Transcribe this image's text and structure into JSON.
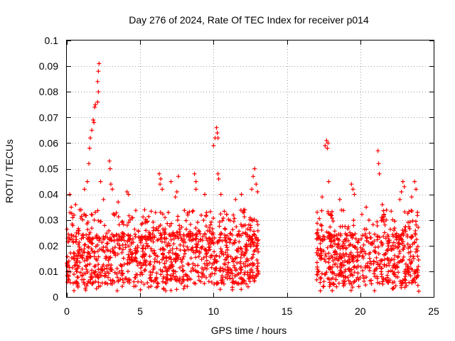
{
  "chart_data": {
    "type": "scatter",
    "title": "Day 276 of 2024, Rate Of TEC Index for receiver p014",
    "xlabel": "GPS time / hours",
    "ylabel": "ROTI / TECUs",
    "xlim": [
      0,
      25
    ],
    "ylim": [
      0,
      0.1
    ],
    "xticks": [
      0,
      5,
      10,
      15,
      20,
      25
    ],
    "yticks": [
      0,
      0.01,
      0.02,
      0.03,
      0.04,
      0.05,
      0.06,
      0.07,
      0.08,
      0.09,
      0.1
    ],
    "xtick_labels": [
      "0",
      "5",
      "10",
      "15",
      "20",
      "25"
    ],
    "ytick_labels": [
      "0",
      "0.01",
      "0.02",
      "0.03",
      "0.04",
      "0.05",
      "0.06",
      "0.07",
      "0.08",
      "0.09",
      "0.1"
    ],
    "grid": true,
    "marker": "+",
    "color": "#ff0000",
    "series": [
      {
        "name": "ROTI",
        "segments": [
          {
            "x_start": 0.0,
            "x_end": 13.05,
            "typical_min": 0.005,
            "typical_max": 0.025
          },
          {
            "x_start": 17.0,
            "x_end": 24.0,
            "typical_min": 0.005,
            "typical_max": 0.025
          }
        ],
        "points": [
          {
            "x": 0.2,
            "y": 0.04
          },
          {
            "x": 0.3,
            "y": 0.035
          },
          {
            "x": 0.6,
            "y": 0.036
          },
          {
            "x": 1.2,
            "y": 0.042
          },
          {
            "x": 1.4,
            "y": 0.045
          },
          {
            "x": 1.5,
            "y": 0.052
          },
          {
            "x": 1.55,
            "y": 0.058
          },
          {
            "x": 1.6,
            "y": 0.062
          },
          {
            "x": 1.7,
            "y": 0.065
          },
          {
            "x": 1.8,
            "y": 0.069
          },
          {
            "x": 1.85,
            "y": 0.068
          },
          {
            "x": 1.9,
            "y": 0.074
          },
          {
            "x": 1.95,
            "y": 0.075
          },
          {
            "x": 2.1,
            "y": 0.076
          },
          {
            "x": 2.15,
            "y": 0.08
          },
          {
            "x": 2.1,
            "y": 0.084
          },
          {
            "x": 2.15,
            "y": 0.088
          },
          {
            "x": 2.2,
            "y": 0.091
          },
          {
            "x": 2.3,
            "y": 0.045
          },
          {
            "x": 2.5,
            "y": 0.038
          },
          {
            "x": 2.9,
            "y": 0.053
          },
          {
            "x": 2.95,
            "y": 0.05
          },
          {
            "x": 3.0,
            "y": 0.044
          },
          {
            "x": 3.1,
            "y": 0.042
          },
          {
            "x": 3.5,
            "y": 0.037
          },
          {
            "x": 4.1,
            "y": 0.041
          },
          {
            "x": 4.2,
            "y": 0.04
          },
          {
            "x": 5.3,
            "y": 0.034
          },
          {
            "x": 6.3,
            "y": 0.048
          },
          {
            "x": 6.35,
            "y": 0.044
          },
          {
            "x": 6.4,
            "y": 0.046
          },
          {
            "x": 6.5,
            "y": 0.042
          },
          {
            "x": 7.1,
            "y": 0.045
          },
          {
            "x": 7.4,
            "y": 0.039
          },
          {
            "x": 7.5,
            "y": 0.041
          },
          {
            "x": 7.6,
            "y": 0.047
          },
          {
            "x": 8.7,
            "y": 0.048
          },
          {
            "x": 8.8,
            "y": 0.045
          },
          {
            "x": 8.8,
            "y": 0.042
          },
          {
            "x": 9.4,
            "y": 0.04
          },
          {
            "x": 10.0,
            "y": 0.059
          },
          {
            "x": 10.1,
            "y": 0.062
          },
          {
            "x": 10.2,
            "y": 0.066
          },
          {
            "x": 10.25,
            "y": 0.064
          },
          {
            "x": 10.3,
            "y": 0.062
          },
          {
            "x": 10.3,
            "y": 0.048
          },
          {
            "x": 10.35,
            "y": 0.046
          },
          {
            "x": 10.5,
            "y": 0.04
          },
          {
            "x": 11.5,
            "y": 0.038
          },
          {
            "x": 11.9,
            "y": 0.04
          },
          {
            "x": 12.6,
            "y": 0.042
          },
          {
            "x": 12.7,
            "y": 0.047
          },
          {
            "x": 12.8,
            "y": 0.05
          },
          {
            "x": 12.9,
            "y": 0.044
          },
          {
            "x": 13.0,
            "y": 0.041
          },
          {
            "x": 17.4,
            "y": 0.039
          },
          {
            "x": 17.6,
            "y": 0.059
          },
          {
            "x": 17.7,
            "y": 0.061
          },
          {
            "x": 17.75,
            "y": 0.058
          },
          {
            "x": 17.8,
            "y": 0.06
          },
          {
            "x": 17.85,
            "y": 0.045
          },
          {
            "x": 18.6,
            "y": 0.038
          },
          {
            "x": 19.4,
            "y": 0.044
          },
          {
            "x": 19.5,
            "y": 0.042
          },
          {
            "x": 19.6,
            "y": 0.04
          },
          {
            "x": 20.4,
            "y": 0.035
          },
          {
            "x": 21.2,
            "y": 0.057
          },
          {
            "x": 21.25,
            "y": 0.052
          },
          {
            "x": 21.3,
            "y": 0.048
          },
          {
            "x": 21.5,
            "y": 0.036
          },
          {
            "x": 22.7,
            "y": 0.038
          },
          {
            "x": 22.8,
            "y": 0.041
          },
          {
            "x": 22.9,
            "y": 0.045
          },
          {
            "x": 23.0,
            "y": 0.043
          },
          {
            "x": 23.5,
            "y": 0.039
          },
          {
            "x": 23.7,
            "y": 0.045
          },
          {
            "x": 23.8,
            "y": 0.042
          },
          {
            "x": 23.9,
            "y": 0.033
          }
        ]
      }
    ]
  }
}
